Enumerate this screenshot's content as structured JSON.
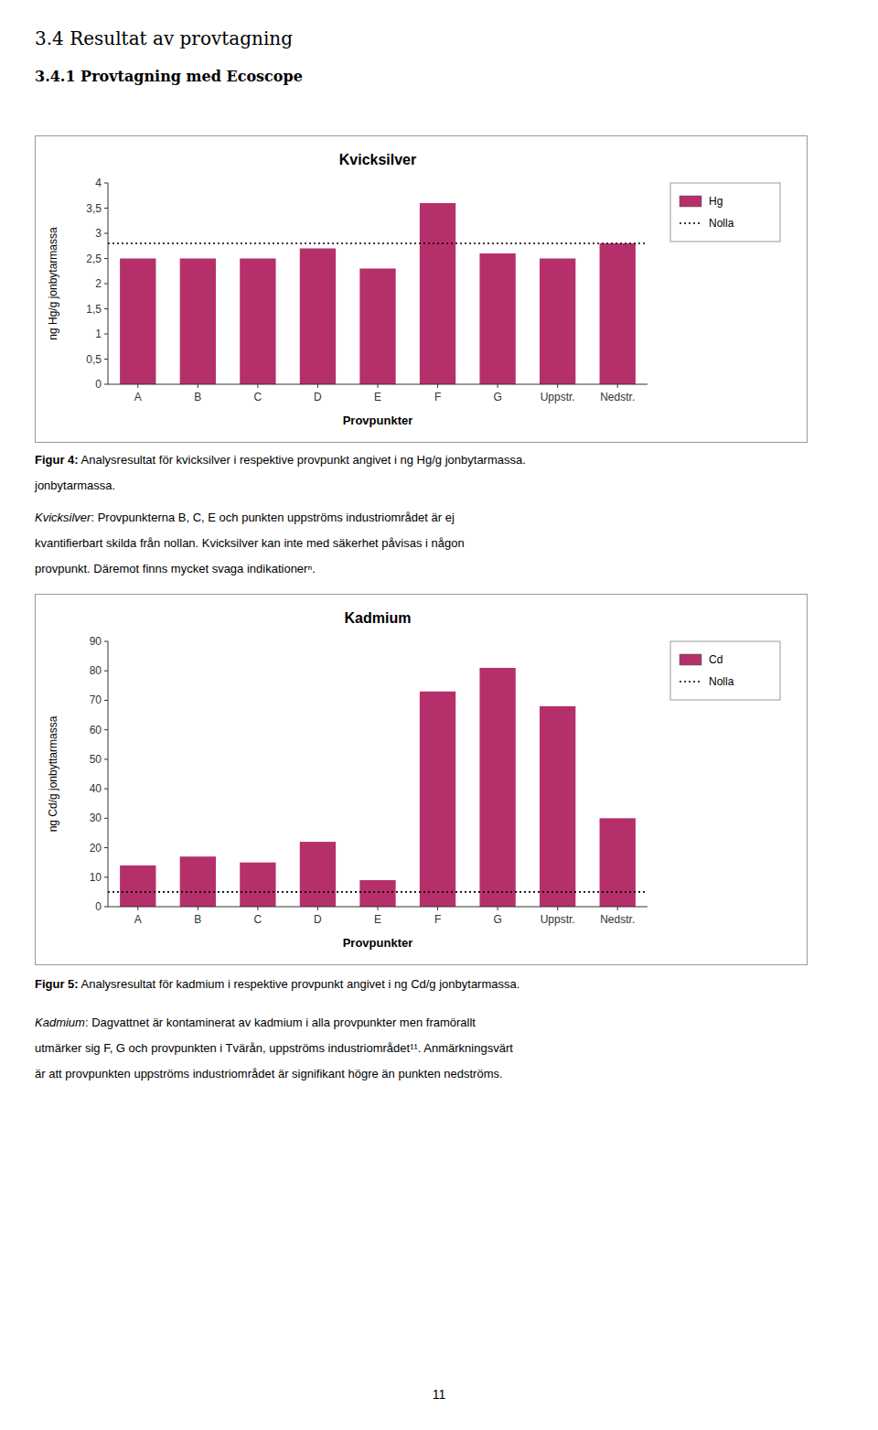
{
  "chart_data": [
    {
      "type": "bar",
      "title": "Kvicksilver",
      "categories": [
        "A",
        "B",
        "C",
        "D",
        "E",
        "F",
        "G",
        "Uppstr.",
        "Nedstr."
      ],
      "series": [
        {
          "name": "Hg",
          "color": "#b5306b",
          "values": [
            2.5,
            2.5,
            2.5,
            2.7,
            2.3,
            3.6,
            2.6,
            2.5,
            2.8
          ]
        }
      ],
      "reference_line": {
        "name": "Nolla",
        "value": 2.8,
        "color": "#000000",
        "line_style": "dotted"
      },
      "xlabel": "Provpunkter",
      "ylabel": "ng Hg/g jonbytarmassa",
      "ylim": [
        0,
        4
      ],
      "yticks": [
        0,
        {
          "value": 0.5,
          "label": "0,5"
        },
        1,
        {
          "value": 1.5,
          "label": "1,5"
        },
        2,
        {
          "value": 2.5,
          "label": "2,5"
        },
        3,
        {
          "value": 3.5,
          "label": "3,5"
        },
        4
      ],
      "grid": false,
      "legend": "right"
    },
    {
      "type": "bar",
      "title": "Kadmium",
      "categories": [
        "A",
        "B",
        "C",
        "D",
        "E",
        "F",
        "G",
        "Uppstr.",
        "Nedstr."
      ],
      "series": [
        {
          "name": "Cd",
          "color": "#b5306b",
          "values": [
            14,
            17,
            15,
            22,
            9,
            73,
            81,
            68,
            30
          ]
        }
      ],
      "reference_line": {
        "name": "Nolla",
        "value": 5,
        "color": "#000000",
        "line_style": "dotted"
      },
      "xlabel": "Provpunkter",
      "ylabel": "ng Cd/g jonbyttarmassa",
      "ylim": [
        0,
        90
      ],
      "yticks": [
        0,
        10,
        20,
        30,
        40,
        50,
        60,
        70,
        80,
        90
      ],
      "grid": false,
      "legend": "right"
    }
  ],
  "page_title": "3.4 Resultat av provtagning",
  "page_subtitle": "3.4.1 Provtagning med Ecoscope",
  "caption1_label": "Figur 4:",
  "caption1_text": " Analysresultat för kvicksilver i respektive provpunkt angivet i ng Hg/g jonbytarmassa.",
  "caption1_line2": "jonbytarmassa.",
  "para1_line1_italic": "Kvicksilver",
  "para1_line1_rest": ": Provpunkterna B, C, E och punkten uppströms industriområdet är ej",
  "para1_line2": "kvantifierbart skilda från nollan. Kvicksilver kan inte med säkerhet påvisas i någon",
  "para1_line3": "provpunkt. Däremot finns mycket svaga indikationerⁿ.",
  "caption2_label": "Figur 5:",
  "caption2_text": " Analysresultat för kadmium i respektive provpunkt angivet i ng Cd/g jonbytarmassa.",
  "para2_line1_italic": "Kadmium",
  "para2_line1_rest": ": Dagvattnet är kontaminerat av kadmium i alla provpunkter men framörallt",
  "para2_line2": "utmärker sig F, G och provpunkten i Tvärån, uppströms industriområdet¹¹. Anmärkningsvärt",
  "para2_line3": "är att provpunkten uppströms industriområdet är signifikant högre än punkten nedströms.",
  "page_number": "11"
}
